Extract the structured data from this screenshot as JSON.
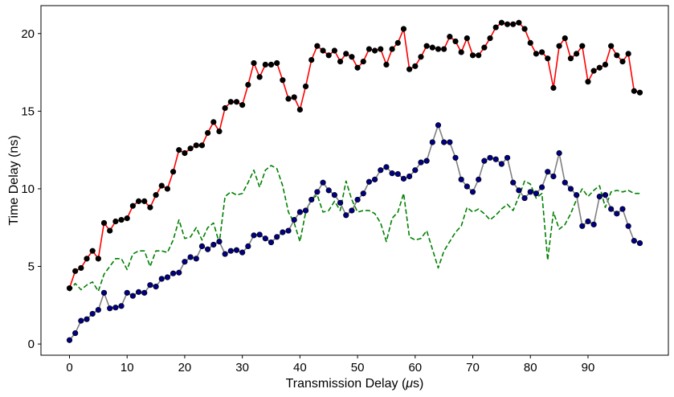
{
  "chart_data": {
    "type": "line",
    "title": "",
    "xlabel": "Transmission Delay (",
    "xlabel_symbol": "μ",
    "xlabel_suffix": "s)",
    "ylabel": "Time Delay (ns)",
    "xlim": [
      -4.95,
      103.95
    ],
    "ylim": [
      -0.72,
      21.8
    ],
    "grid": false,
    "x_ticks": [
      0,
      10,
      20,
      30,
      40,
      50,
      60,
      70,
      80,
      90
    ],
    "y_ticks": [
      0,
      5,
      10,
      15,
      20
    ],
    "x": [
      0,
      1,
      2,
      3,
      4,
      5,
      6,
      7,
      8,
      9,
      10,
      11,
      12,
      13,
      14,
      15,
      16,
      17,
      18,
      19,
      20,
      21,
      22,
      23,
      24,
      25,
      26,
      27,
      28,
      29,
      30,
      31,
      32,
      33,
      34,
      35,
      36,
      37,
      38,
      39,
      40,
      41,
      42,
      43,
      44,
      45,
      46,
      47,
      48,
      49,
      50,
      51,
      52,
      53,
      54,
      55,
      56,
      57,
      58,
      59,
      60,
      61,
      62,
      63,
      64,
      65,
      66,
      67,
      68,
      69,
      70,
      71,
      72,
      73,
      74,
      75,
      76,
      77,
      78,
      79,
      80,
      81,
      82,
      83,
      84,
      85,
      86,
      87,
      88,
      89,
      90,
      91,
      92,
      93,
      94,
      95,
      96,
      97,
      98,
      99
    ],
    "series": [
      {
        "color": "#ff0000",
        "marker_color": "#000000",
        "style": "solid-with-markers",
        "values": [
          3.6,
          4.7,
          4.9,
          5.5,
          6.0,
          5.5,
          7.8,
          7.3,
          7.9,
          8.0,
          8.1,
          8.9,
          9.2,
          9.2,
          8.8,
          9.6,
          10.2,
          10.0,
          11.1,
          12.5,
          12.3,
          12.6,
          12.8,
          12.8,
          13.6,
          14.3,
          13.7,
          15.2,
          15.6,
          15.6,
          15.4,
          16.7,
          18.1,
          17.2,
          18.0,
          18.0,
          18.1,
          17.0,
          15.8,
          15.9,
          15.1,
          16.6,
          18.3,
          19.2,
          18.9,
          18.6,
          18.9,
          18.2,
          18.7,
          18.5,
          17.8,
          18.2,
          19.0,
          18.9,
          19.0,
          18.0,
          19.0,
          19.4,
          20.3,
          17.7,
          17.9,
          18.5,
          19.2,
          19.1,
          19.0,
          19.0,
          19.8,
          19.5,
          18.8,
          19.7,
          18.6,
          18.6,
          19.1,
          19.7,
          20.4,
          20.7,
          20.6,
          20.6,
          20.7,
          20.3,
          19.4,
          18.7,
          18.8,
          18.4,
          16.5,
          19.2,
          19.7,
          18.4,
          18.7,
          19.2,
          16.9,
          17.6,
          17.8,
          18.0,
          19.2,
          18.6,
          18.2,
          18.7,
          16.3,
          16.2
        ]
      },
      {
        "color": "#808080",
        "marker_color": "#000080",
        "style": "solid-with-markers",
        "values": [
          0.25,
          0.7,
          1.5,
          1.6,
          1.95,
          2.2,
          3.3,
          2.3,
          2.35,
          2.45,
          3.3,
          3.1,
          3.35,
          3.3,
          3.8,
          3.7,
          4.2,
          4.3,
          4.55,
          4.6,
          5.3,
          5.6,
          5.5,
          6.3,
          6.1,
          6.4,
          6.6,
          5.8,
          6.0,
          6.05,
          5.9,
          6.3,
          7.0,
          7.05,
          6.8,
          6.55,
          6.9,
          7.2,
          7.3,
          8.0,
          8.5,
          8.6,
          9.3,
          9.8,
          10.4,
          9.9,
          9.6,
          9.1,
          8.3,
          8.6,
          9.3,
          9.7,
          10.45,
          10.6,
          11.2,
          11.4,
          11.0,
          10.95,
          10.65,
          10.8,
          11.2,
          11.7,
          11.8,
          13.0,
          14.1,
          13.0,
          13.0,
          12.0,
          10.6,
          10.15,
          9.8,
          10.6,
          11.8,
          12.0,
          11.9,
          11.6,
          12.0,
          10.4,
          9.9,
          9.4,
          9.8,
          9.7,
          10.1,
          11.1,
          10.8,
          12.3,
          10.4,
          10.0,
          9.6,
          7.6,
          7.9,
          7.7,
          9.5,
          9.6,
          8.7,
          8.4,
          8.7,
          7.6,
          6.65,
          6.5
        ]
      },
      {
        "color": "#008000",
        "style": "dashed",
        "values": [
          3.4,
          3.9,
          3.5,
          3.8,
          4.0,
          3.4,
          4.5,
          5.0,
          5.5,
          5.5,
          4.8,
          5.8,
          6.0,
          6.0,
          5.0,
          6.0,
          6.0,
          5.9,
          6.7,
          8.0,
          6.8,
          6.9,
          7.5,
          6.7,
          7.5,
          7.8,
          6.5,
          9.5,
          9.8,
          9.6,
          9.7,
          10.4,
          11.2,
          10.1,
          11.2,
          11.5,
          11.3,
          10.2,
          8.5,
          7.8,
          6.6,
          8.5,
          9.3,
          9.6,
          8.5,
          8.6,
          9.2,
          8.6,
          10.5,
          9.3,
          8.5,
          8.6,
          8.6,
          8.4,
          7.8,
          6.6,
          8.1,
          8.5,
          9.7,
          6.9,
          6.7,
          6.8,
          7.3,
          6.1,
          4.9,
          6.0,
          6.6,
          7.2,
          7.6,
          8.8,
          8.5,
          8.7,
          8.4,
          8.0,
          8.3,
          8.7,
          9.0,
          8.6,
          9.5,
          10.5,
          10.3,
          9.4,
          9.7,
          5.4,
          8.5,
          7.4,
          7.7,
          8.4,
          9.3,
          10.0,
          9.5,
          9.9,
          10.2,
          8.8,
          9.8,
          9.9,
          9.8,
          9.9,
          9.7,
          9.7
        ]
      }
    ]
  }
}
